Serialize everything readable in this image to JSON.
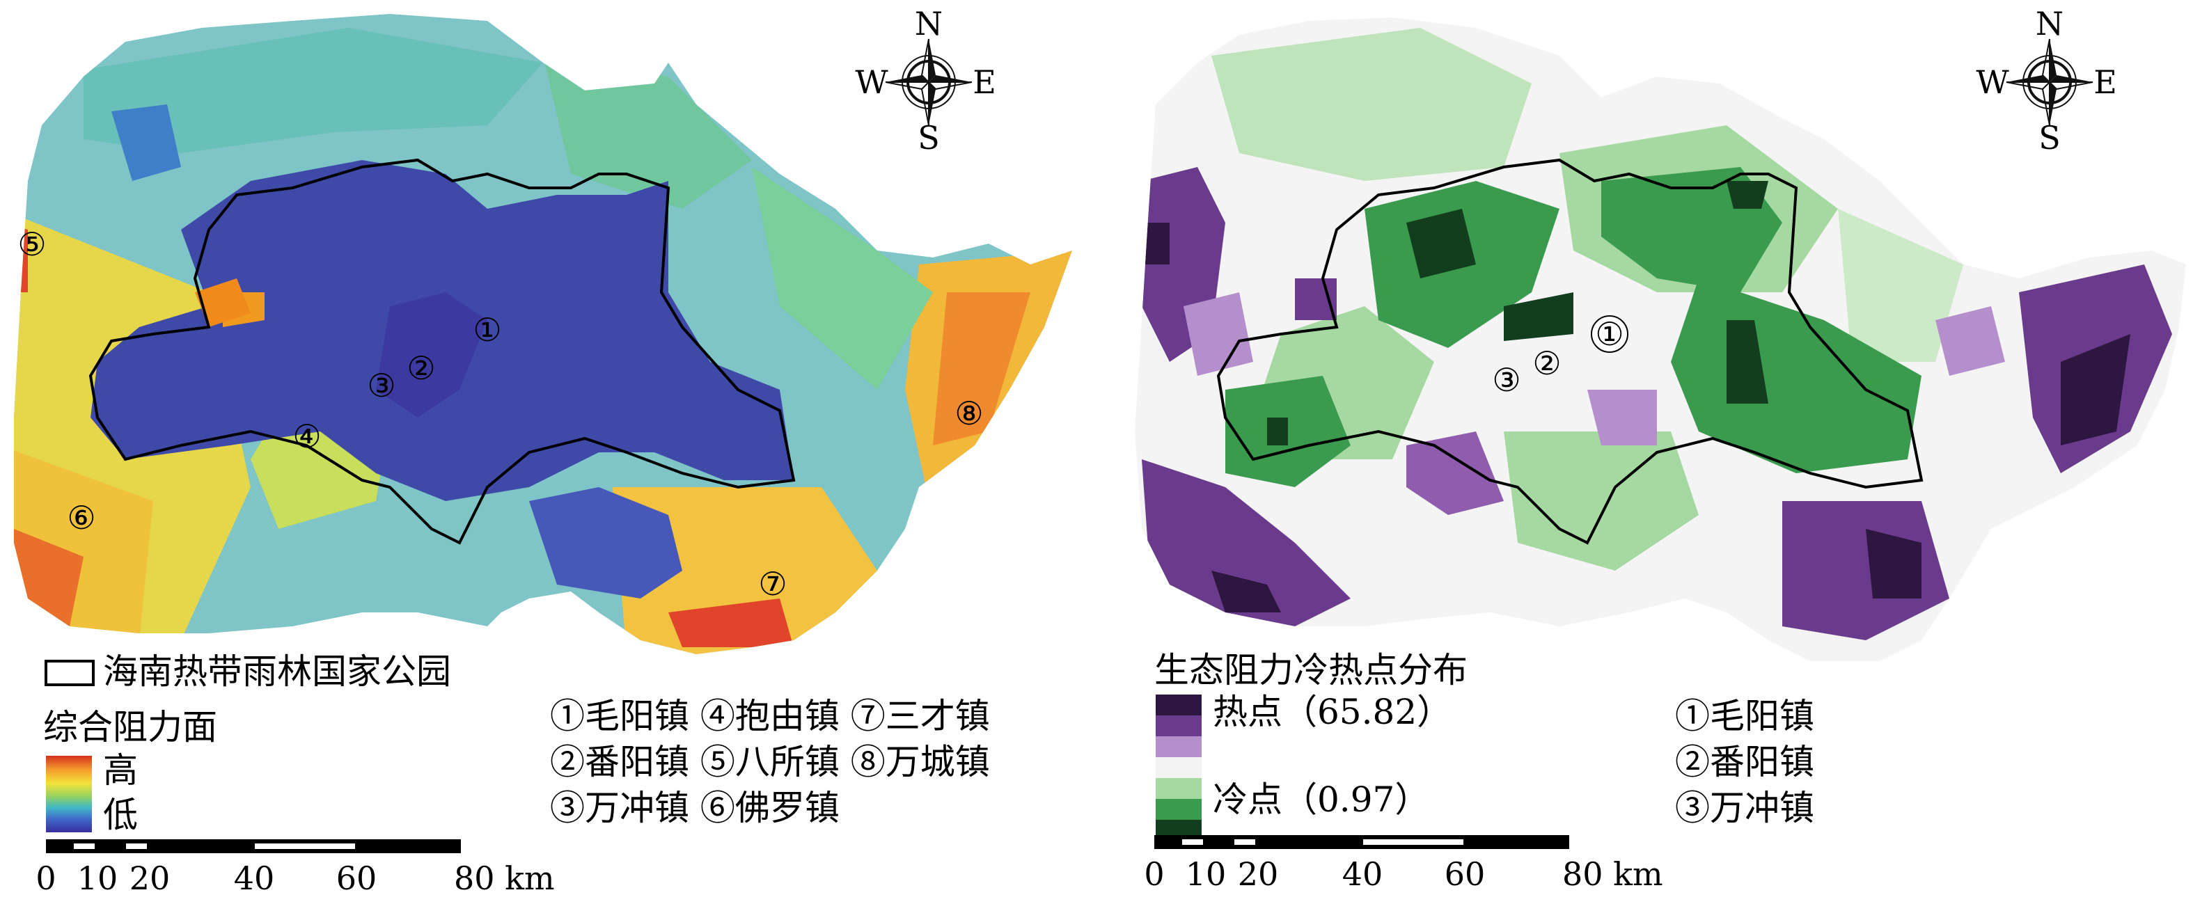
{
  "left_panel": {
    "park_legend_label": "海南热带雨林国家公园",
    "resistance_title": "综合阻力面",
    "ramp_high": "高",
    "ramp_low": "低",
    "compass": {
      "n": "N",
      "s": "S",
      "w": "W",
      "e": "E"
    },
    "map_markers": [
      "①",
      "②",
      "③",
      "④",
      "⑤",
      "⑥",
      "⑦",
      "⑧"
    ],
    "town_list": [
      "①毛阳镇 ④抱由镇 ⑦三才镇",
      "②番阳镇 ⑤八所镇 ⑧万城镇",
      "③万冲镇 ⑥佛罗镇"
    ],
    "scale_labels": [
      "0",
      "10",
      "20",
      "40",
      "60",
      "80 km"
    ]
  },
  "right_panel": {
    "title": "生态阻力冷热点分布",
    "hot_label": "热点（65.82）",
    "cold_label": "冷点（0.97）",
    "compass": {
      "n": "N",
      "s": "S",
      "w": "W",
      "e": "E"
    },
    "map_markers": [
      "①",
      "②",
      "③"
    ],
    "town_list": [
      "①毛阳镇",
      "②番阳镇",
      "③万冲镇"
    ],
    "scale_labels": [
      "0",
      "10",
      "20",
      "40",
      "60",
      "80 km"
    ],
    "hotspot_colors": [
      "#2d1640",
      "#6a3a8c",
      "#b58fcc",
      "#f3f3f3",
      "#a6d9a2",
      "#3a9a4e",
      "#123d1e"
    ]
  },
  "resistance_ramp_colors": [
    "#d7301f",
    "#f49b2a",
    "#f2e33a",
    "#9bd35a",
    "#3fb8c8",
    "#3f63c9",
    "#3a2f9e"
  ]
}
